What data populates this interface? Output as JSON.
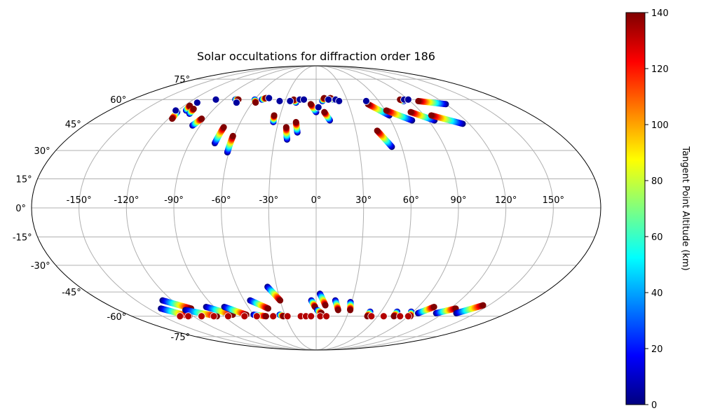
{
  "chart_data": {
    "type": "scatter",
    "projection": "mollweide",
    "title": "Solar occultations for diffraction order 186",
    "lon_ticks": [
      {
        "value": -150,
        "label": "-150°"
      },
      {
        "value": -120,
        "label": "-120°"
      },
      {
        "value": -90,
        "label": "-90°"
      },
      {
        "value": -60,
        "label": "-60°"
      },
      {
        "value": -30,
        "label": "-30°"
      },
      {
        "value": 0,
        "label": "0°"
      },
      {
        "value": 30,
        "label": "30°"
      },
      {
        "value": 60,
        "label": "60°"
      },
      {
        "value": 90,
        "label": "90°"
      },
      {
        "value": 120,
        "label": "120°"
      },
      {
        "value": 150,
        "label": "150°"
      }
    ],
    "lat_ticks": [
      {
        "value": 75,
        "label": "75°"
      },
      {
        "value": 60,
        "label": "60°"
      },
      {
        "value": 45,
        "label": "45°"
      },
      {
        "value": 30,
        "label": "30°"
      },
      {
        "value": 15,
        "label": "15°"
      },
      {
        "value": 0,
        "label": "0°"
      },
      {
        "value": -15,
        "label": "-15°"
      },
      {
        "value": -30,
        "label": "-30°"
      },
      {
        "value": -45,
        "label": "-45°"
      },
      {
        "value": -60,
        "label": "-60°"
      },
      {
        "value": -75,
        "label": "-75°"
      }
    ],
    "colorbar": {
      "label": "Tangent Point Altitude (km)",
      "min": 0,
      "max": 140,
      "ticks": [
        {
          "value": 0,
          "label": "0"
        },
        {
          "value": 20,
          "label": "20"
        },
        {
          "value": 40,
          "label": "40"
        },
        {
          "value": 60,
          "label": "60"
        },
        {
          "value": 80,
          "label": "80"
        },
        {
          "value": 100,
          "label": "100"
        },
        {
          "value": 120,
          "label": "120"
        },
        {
          "value": 140,
          "label": "140"
        }
      ]
    },
    "occultation_tracks": [
      {
        "lon_start": -119,
        "lat_start": 52,
        "lon_end": -117,
        "lat_end": 48
      },
      {
        "lon_start": -113,
        "lat_start": 53,
        "lon_end": -115,
        "lat_end": 56
      },
      {
        "lon_start": -107,
        "lat_start": 51,
        "lon_end": -108,
        "lat_end": 54
      },
      {
        "lon_start": -96,
        "lat_start": 44,
        "lon_end": -93,
        "lat_end": 48
      },
      {
        "lon_start": -79,
        "lat_start": 60,
        "lon_end": -76,
        "lat_end": 60
      },
      {
        "lon_start": -72,
        "lat_start": 34,
        "lon_end": -71,
        "lat_end": 43
      },
      {
        "lon_start": -61,
        "lat_start": 29,
        "lon_end": -61,
        "lat_end": 38
      },
      {
        "lon_start": -60,
        "lat_start": 60,
        "lon_end": -57,
        "lat_end": 58
      },
      {
        "lon_start": -53,
        "lat_start": 60,
        "lon_end": -50,
        "lat_end": 61
      },
      {
        "lon_start": -34,
        "lat_start": 46,
        "lon_end": -35,
        "lat_end": 50
      },
      {
        "lon_start": -21,
        "lat_start": 36,
        "lon_end": -23,
        "lat_end": 43
      },
      {
        "lon_start": -14,
        "lat_start": 40,
        "lon_end": -16,
        "lat_end": 46
      },
      {
        "lon_start": -19,
        "lat_start": 58,
        "lon_end": -22,
        "lat_end": 60
      },
      {
        "lon_start": 0,
        "lat_start": 52,
        "lon_end": -5,
        "lat_end": 57
      },
      {
        "lon_start": 11,
        "lat_start": 47,
        "lon_end": 7,
        "lat_end": 52
      },
      {
        "lon_start": 6,
        "lat_start": 59,
        "lon_end": 8,
        "lat_end": 61
      },
      {
        "lon_start": 17,
        "lat_start": 60,
        "lon_end": 14,
        "lat_end": 61
      },
      {
        "lon_start": 53,
        "lat_start": 32,
        "lon_end": 46,
        "lat_end": 41
      },
      {
        "lon_start": 61,
        "lat_start": 50,
        "lon_end": 48,
        "lat_end": 57
      },
      {
        "lon_start": 77,
        "lat_start": 47,
        "lon_end": 61,
        "lat_end": 53
      },
      {
        "lon_start": 95,
        "lat_start": 47,
        "lon_end": 81,
        "lat_end": 52
      },
      {
        "lon_start": 115,
        "lat_start": 45,
        "lon_end": 96,
        "lat_end": 50
      },
      {
        "lon_start": 120,
        "lat_start": 57,
        "lon_end": 98,
        "lat_end": 59
      },
      {
        "lon_start": 84,
        "lat_start": 59,
        "lon_end": 82,
        "lat_end": 60
      },
      {
        "lon_start": -128,
        "lat_start": -50,
        "lon_end": -112,
        "lat_end": -55
      },
      {
        "lon_start": -139,
        "lat_start": -55,
        "lon_end": -124,
        "lat_end": -60
      },
      {
        "lon_start": -119,
        "lat_start": -56,
        "lon_end": -97,
        "lat_end": -60
      },
      {
        "lon_start": -97,
        "lat_start": -54,
        "lon_end": -80,
        "lat_end": -59
      },
      {
        "lon_start": -81,
        "lat_start": -54,
        "lon_end": -67,
        "lat_end": -59
      },
      {
        "lon_start": -55,
        "lat_start": -50,
        "lon_end": -43,
        "lat_end": -55
      },
      {
        "lon_start": -37,
        "lat_start": -42,
        "lon_end": -30,
        "lat_end": -50
      },
      {
        "lon_start": -60,
        "lat_start": -59,
        "lon_end": -49,
        "lat_end": -60
      },
      {
        "lon_start": -35,
        "lat_start": -59,
        "lon_end": -32,
        "lat_end": -60
      },
      {
        "lon_start": -4,
        "lat_start": -50,
        "lon_end": -1,
        "lat_end": -54
      },
      {
        "lon_start": 3,
        "lat_start": -46,
        "lon_end": 8,
        "lat_end": -53
      },
      {
        "lon_start": 16,
        "lat_start": -50,
        "lon_end": 20,
        "lat_end": -56
      },
      {
        "lon_start": 29,
        "lat_start": -51,
        "lon_end": 31,
        "lat_end": -56
      },
      {
        "lon_start": 1,
        "lat_start": -56,
        "lon_end": 5,
        "lat_end": -58
      },
      {
        "lon_start": 50,
        "lat_start": -57,
        "lon_end": 50,
        "lat_end": -60
      },
      {
        "lon_start": 96,
        "lat_start": -58,
        "lon_end": 104,
        "lat_end": -54
      },
      {
        "lon_start": 113,
        "lat_start": -58,
        "lon_end": 125,
        "lat_end": -55
      },
      {
        "lon_start": 132,
        "lat_start": -58,
        "lon_end": 145,
        "lat_end": -53
      },
      {
        "lon_start": 88,
        "lat_start": -57,
        "lon_end": 92,
        "lat_end": -60
      },
      {
        "lon_start": 75,
        "lat_start": -57,
        "lon_end": 76,
        "lat_end": -60
      }
    ],
    "bottom_surface_points": [
      {
        "lon": -133,
        "lat": -60
      },
      {
        "lon": -125,
        "lat": -60
      },
      {
        "lon": -112,
        "lat": -60
      },
      {
        "lon": -100,
        "lat": -60
      },
      {
        "lon": -86,
        "lat": -60
      },
      {
        "lon": -70,
        "lat": -60
      },
      {
        "lon": -58,
        "lat": -60
      },
      {
        "lon": -42,
        "lat": -60
      },
      {
        "lon": -28,
        "lat": -60
      },
      {
        "lon": -15,
        "lat": -60
      },
      {
        "lon": -10,
        "lat": -60
      },
      {
        "lon": -5,
        "lat": -60
      },
      {
        "lon": 4,
        "lat": -60
      },
      {
        "lon": 10,
        "lat": -60
      },
      {
        "lon": 54,
        "lat": -60
      },
      {
        "lon": 66,
        "lat": -60
      },
      {
        "lon": 82,
        "lat": -60
      },
      {
        "lon": 90,
        "lat": -60
      }
    ],
    "top_surface_points": [
      {
        "lon": -122,
        "lat": 53
      },
      {
        "lon": -112,
        "lat": 58
      },
      {
        "lon": -98,
        "lat": 60
      },
      {
        "lon": -75,
        "lat": 58
      },
      {
        "lon": -47,
        "lat": 61
      },
      {
        "lon": -35,
        "lat": 59
      },
      {
        "lon": -25,
        "lat": 59
      },
      {
        "lon": -16,
        "lat": 60
      },
      {
        "lon": -12,
        "lat": 60
      },
      {
        "lon": 2,
        "lat": 55
      },
      {
        "lon": 12,
        "lat": 60
      },
      {
        "lon": 19,
        "lat": 60
      },
      {
        "lon": 22,
        "lat": 59
      },
      {
        "lon": 48,
        "lat": 59
      },
      {
        "lon": 86,
        "lat": 60
      },
      {
        "lon": 90,
        "lat": 60
      }
    ]
  }
}
